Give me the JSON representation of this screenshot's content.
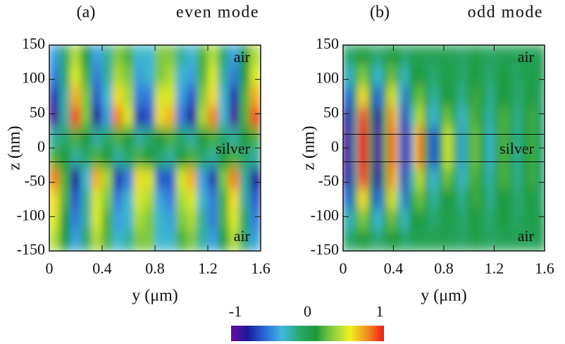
{
  "chart_data": [
    {
      "type": "heatmap",
      "title": "(a)",
      "subtitle": "even mode",
      "xlabel": "y (μm)",
      "ylabel": "z (nm)",
      "annotations": [
        "air",
        "silver",
        "air"
      ],
      "xlim": [
        0,
        1.6
      ],
      "ylim": [
        -150,
        150
      ],
      "xticks": [
        0,
        0.4,
        0.8,
        1.2,
        1.6
      ],
      "yticks": [
        150,
        100,
        50,
        0,
        -50,
        -100,
        -150
      ],
      "x": [
        0.04,
        0.12,
        0.2,
        0.28,
        0.36,
        0.44,
        0.52,
        0.6,
        0.68,
        0.76,
        0.84,
        0.92,
        1.0,
        1.08,
        1.16,
        1.24,
        1.32,
        1.4,
        1.48,
        1.56
      ],
      "y": [
        135,
        105,
        75,
        45,
        15,
        -15,
        -45,
        -75,
        -105,
        -135
      ],
      "values": [
        [
          -0.4,
          -0.1,
          0.4,
          0.1,
          -0.4,
          -0.2,
          0.3,
          0.2,
          -0.3,
          -0.3,
          0.3,
          0.3,
          -0.2,
          -0.3,
          0.2,
          0.4,
          -0.1,
          -0.4,
          0.1,
          0.4
        ],
        [
          -0.5,
          -0.1,
          0.5,
          0.2,
          -0.5,
          -0.2,
          0.4,
          0.3,
          -0.4,
          -0.3,
          0.3,
          0.4,
          -0.3,
          -0.4,
          0.2,
          0.5,
          -0.2,
          -0.5,
          0.1,
          0.5
        ],
        [
          -0.7,
          -0.2,
          0.7,
          0.3,
          -0.6,
          -0.3,
          0.6,
          0.4,
          -0.5,
          -0.5,
          0.5,
          0.5,
          -0.4,
          -0.6,
          0.3,
          0.6,
          -0.3,
          -0.7,
          0.2,
          0.7
        ],
        [
          -0.9,
          -0.2,
          0.9,
          0.3,
          -0.8,
          -0.4,
          0.8,
          0.5,
          -0.7,
          -0.6,
          0.6,
          0.7,
          -0.5,
          -0.8,
          0.4,
          0.8,
          -0.3,
          -0.9,
          0.2,
          0.9
        ],
        [
          -0.2,
          -0.1,
          0.2,
          0.1,
          -0.2,
          -0.1,
          0.2,
          0.1,
          -0.2,
          -0.1,
          0.1,
          0.2,
          -0.1,
          -0.2,
          0.1,
          0.2,
          -0.1,
          -0.2,
          0.1,
          0.2
        ],
        [
          0.2,
          0.1,
          -0.2,
          -0.1,
          0.2,
          0.1,
          -0.2,
          -0.1,
          0.2,
          0.1,
          -0.1,
          -0.2,
          0.1,
          0.2,
          -0.1,
          -0.2,
          0.1,
          0.2,
          -0.1,
          -0.2
        ],
        [
          0.8,
          0.2,
          -0.8,
          -0.3,
          0.7,
          0.4,
          -0.7,
          -0.5,
          0.6,
          0.5,
          -0.6,
          -0.6,
          0.5,
          0.7,
          -0.4,
          -0.7,
          0.3,
          0.8,
          -0.2,
          -0.8
        ],
        [
          0.6,
          0.2,
          -0.6,
          -0.2,
          0.5,
          0.3,
          -0.5,
          -0.3,
          0.5,
          0.4,
          -0.4,
          -0.5,
          0.4,
          0.5,
          -0.3,
          -0.5,
          0.2,
          0.6,
          -0.2,
          -0.6
        ],
        [
          0.5,
          0.1,
          -0.5,
          -0.2,
          0.5,
          0.2,
          -0.4,
          -0.3,
          0.4,
          0.3,
          -0.3,
          -0.4,
          0.3,
          0.4,
          -0.2,
          -0.5,
          0.2,
          0.5,
          -0.1,
          -0.5
        ],
        [
          0.4,
          0.1,
          -0.4,
          -0.1,
          0.4,
          0.2,
          -0.3,
          -0.2,
          0.3,
          0.3,
          -0.3,
          -0.3,
          0.2,
          0.3,
          -0.2,
          -0.4,
          0.1,
          0.4,
          -0.1,
          -0.4
        ]
      ]
    },
    {
      "type": "heatmap",
      "title": "(b)",
      "subtitle": "odd mode",
      "xlabel": "y (μm)",
      "ylabel": "z (nm)",
      "annotations": [
        "air",
        "silver",
        "air"
      ],
      "xlim": [
        0,
        1.6
      ],
      "ylim": [
        -150,
        150
      ],
      "xticks": [
        0,
        0.4,
        0.8,
        1.2,
        1.6
      ],
      "yticks": [
        150,
        100,
        50,
        0,
        -50,
        -100,
        -150
      ],
      "x": [
        0.02,
        0.06,
        0.1,
        0.14,
        0.18,
        0.22,
        0.26,
        0.3,
        0.34,
        0.38,
        0.42,
        0.46,
        0.5,
        0.54,
        0.58,
        0.62,
        0.66,
        0.7,
        0.74,
        0.78,
        0.82,
        0.86,
        0.9,
        0.94,
        0.98,
        1.02,
        1.06,
        1.1,
        1.14,
        1.18,
        1.22,
        1.26,
        1.3,
        1.34,
        1.38,
        1.42,
        1.46,
        1.5,
        1.54,
        1.58
      ],
      "y": [
        135,
        105,
        75,
        45,
        15,
        -15,
        -45,
        -75,
        -105,
        -135
      ],
      "values": [
        [
          -0.1,
          -0.1,
          0,
          0.1,
          0.1,
          0,
          -0.1,
          -0.1,
          0,
          0.1,
          0.1,
          0,
          -0.1,
          0,
          0,
          0,
          0,
          0,
          0,
          0,
          0,
          0,
          0,
          -0.1,
          0,
          0,
          0.1,
          0,
          0,
          -0.1,
          0,
          0,
          0,
          0,
          0,
          0,
          0,
          0,
          0,
          0
        ],
        [
          -0.2,
          -0.3,
          -0.1,
          0.3,
          0.3,
          0,
          -0.3,
          -0.3,
          0.1,
          0.3,
          0.2,
          -0.2,
          -0.3,
          0,
          0.1,
          0.1,
          0,
          -0.1,
          -0.1,
          0,
          0.1,
          0,
          0,
          -0.1,
          -0.1,
          0.1,
          0.1,
          0,
          -0.1,
          -0.1,
          0,
          0.1,
          0.1,
          0,
          -0.1,
          0,
          0,
          0.1,
          0,
          0
        ],
        [
          -0.5,
          -0.6,
          -0.1,
          0.6,
          0.6,
          0,
          -0.6,
          -0.5,
          0.2,
          0.6,
          0.4,
          -0.3,
          -0.6,
          -0.1,
          0.2,
          0.3,
          0.1,
          -0.2,
          -0.2,
          0,
          0.1,
          0.1,
          0,
          -0.2,
          -0.1,
          0.1,
          0.2,
          0.1,
          -0.1,
          -0.2,
          0,
          0.1,
          0.1,
          0,
          -0.1,
          -0.1,
          0.1,
          0.1,
          0,
          -0.1
        ],
        [
          -0.7,
          -0.9,
          -0.2,
          0.9,
          0.9,
          0,
          -0.9,
          -0.8,
          0.3,
          0.9,
          0.6,
          -0.5,
          -0.9,
          -0.3,
          0.3,
          0.5,
          0.1,
          -0.3,
          -0.3,
          0,
          0.3,
          0.2,
          -0.1,
          -0.3,
          -0.2,
          0.2,
          0.2,
          0.1,
          -0.2,
          -0.2,
          0,
          0.2,
          0.2,
          0,
          -0.2,
          -0.1,
          0.1,
          0.2,
          0,
          -0.1
        ],
        [
          -0.8,
          -1,
          -0.2,
          1,
          1,
          0,
          -1,
          -0.9,
          0.3,
          1,
          0.7,
          -0.5,
          -1,
          -0.5,
          0.6,
          1,
          0.2,
          -0.6,
          -0.6,
          0,
          0.5,
          0.4,
          -0.1,
          -0.4,
          -0.2,
          0.2,
          0.3,
          0.1,
          -0.2,
          -0.3,
          0,
          0.2,
          0.2,
          0,
          -0.2,
          -0.1,
          0.1,
          0.2,
          0,
          -0.1
        ],
        [
          -0.8,
          -1,
          -0.2,
          1,
          1,
          0,
          -1,
          -0.9,
          0.3,
          1,
          0.7,
          -0.5,
          -1,
          -0.5,
          0.6,
          1,
          0.2,
          -0.6,
          -0.6,
          0,
          0.5,
          0.4,
          -0.1,
          -0.4,
          -0.2,
          0.2,
          0.3,
          0.1,
          -0.2,
          -0.3,
          0,
          0.2,
          0.2,
          0,
          -0.2,
          -0.1,
          0.1,
          0.2,
          0,
          -0.1
        ],
        [
          -0.7,
          -0.9,
          -0.2,
          0.9,
          0.9,
          0,
          -0.9,
          -0.8,
          0.3,
          0.9,
          0.6,
          -0.5,
          -0.9,
          -0.3,
          0.3,
          0.5,
          0.1,
          -0.3,
          -0.3,
          0,
          0.3,
          0.2,
          -0.1,
          -0.3,
          -0.2,
          0.2,
          0.2,
          0.1,
          -0.2,
          -0.2,
          0,
          0.2,
          0.2,
          0,
          -0.2,
          -0.1,
          0.1,
          0.2,
          0,
          -0.1
        ],
        [
          -0.5,
          -0.6,
          -0.1,
          0.6,
          0.6,
          0,
          -0.6,
          -0.5,
          0.2,
          0.6,
          0.4,
          -0.3,
          -0.6,
          -0.1,
          0.2,
          0.3,
          0.1,
          -0.2,
          -0.2,
          0,
          0.1,
          0.1,
          0,
          -0.2,
          -0.1,
          0.1,
          0.2,
          0.1,
          -0.1,
          -0.2,
          0,
          0.1,
          0.1,
          0,
          -0.1,
          -0.1,
          0.1,
          0.1,
          0,
          -0.1
        ],
        [
          -0.2,
          -0.3,
          -0.1,
          0.3,
          0.3,
          0,
          -0.3,
          -0.3,
          0.1,
          0.3,
          0.2,
          -0.2,
          -0.3,
          0,
          0.1,
          0.1,
          0,
          -0.1,
          -0.1,
          0,
          0.1,
          0,
          0,
          -0.1,
          -0.1,
          0.1,
          0.1,
          0,
          -0.1,
          -0.1,
          0,
          0.1,
          0.1,
          0,
          -0.1,
          0,
          0,
          0.1,
          0,
          0
        ],
        [
          -0.1,
          -0.1,
          0,
          0.1,
          0.1,
          0,
          -0.1,
          -0.1,
          0,
          0.1,
          0.1,
          0,
          -0.1,
          0,
          0,
          0,
          0,
          0,
          0,
          0,
          0,
          0,
          0,
          -0.1,
          0,
          0,
          0.1,
          0,
          0,
          -0.1,
          0,
          0,
          0,
          0,
          0,
          0,
          0,
          0,
          0,
          0
        ]
      ]
    }
  ],
  "colorbar": {
    "colormap": [
      "#6a0aa0",
      "#1a1a9a",
      "#2a6ad8",
      "#40b8e0",
      "#2aa870",
      "#1e9a3a",
      "#8cd040",
      "#f0f020",
      "#f09020",
      "#f01818"
    ],
    "lim": [
      -1,
      1
    ],
    "ticks": [
      -1,
      0,
      1
    ]
  }
}
